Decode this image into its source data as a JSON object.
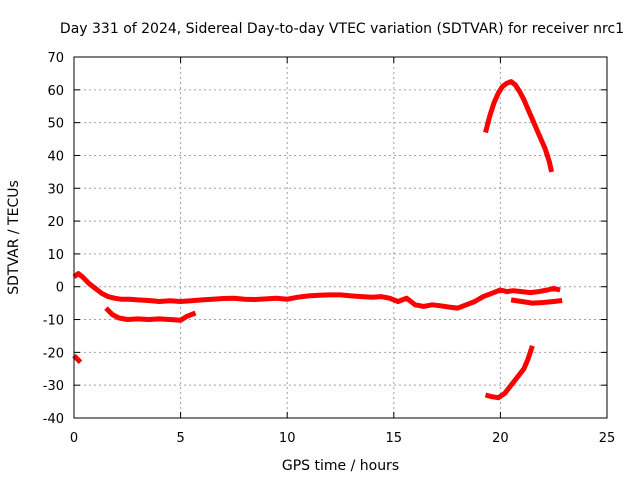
{
  "chart_data": {
    "type": "line",
    "title": "Day 331 of 2024, Sidereal Day-to-day VTEC variation (SDTVAR) for receiver nrc1",
    "xlabel": "GPS time / hours",
    "ylabel": "SDTVAR / TECUs",
    "xlim": [
      0,
      25
    ],
    "ylim": [
      -40,
      70
    ],
    "xticks": [
      0,
      5,
      10,
      15,
      20,
      25
    ],
    "yticks": [
      -40,
      -30,
      -20,
      -10,
      0,
      10,
      20,
      30,
      40,
      50,
      60,
      70
    ],
    "grid": true,
    "line_color": "#ff0000",
    "series": [
      {
        "name": "main",
        "x": [
          0.0,
          0.2,
          0.4,
          0.7,
          1.0,
          1.3,
          1.6,
          1.9,
          2.2,
          2.6,
          3.0,
          3.5,
          4.0,
          4.5,
          5.0,
          5.5,
          6.0,
          6.5,
          7.0,
          7.5,
          8.0,
          8.5,
          9.0,
          9.5,
          10.0,
          10.5,
          11.0,
          11.5,
          12.0,
          12.5,
          13.0,
          13.5,
          14.0,
          14.4,
          14.8,
          15.2,
          15.6,
          16.0,
          16.4,
          16.8,
          17.2,
          17.6,
          18.0,
          18.4,
          18.8,
          19.2,
          19.6,
          20.0,
          20.3,
          20.6,
          21.0,
          21.4,
          21.8,
          22.2,
          22.5,
          22.8
        ],
        "y": [
          3,
          4,
          3,
          1,
          -0.5,
          -2,
          -3,
          -3.5,
          -3.8,
          -3.8,
          -4,
          -4.2,
          -4.5,
          -4.3,
          -4.5,
          -4.3,
          -4,
          -3.8,
          -3.6,
          -3.5,
          -3.8,
          -3.9,
          -3.7,
          -3.5,
          -3.8,
          -3.2,
          -2.8,
          -2.6,
          -2.5,
          -2.5,
          -2.8,
          -3,
          -3.2,
          -3,
          -3.5,
          -4.5,
          -3.5,
          -5.5,
          -6,
          -5.5,
          -5.8,
          -6.2,
          -6.5,
          -5.5,
          -4.5,
          -3,
          -2,
          -1,
          -1.5,
          -1.2,
          -1.5,
          -1.8,
          -1.5,
          -1,
          -0.5,
          -1
        ]
      },
      {
        "name": "lower-left",
        "x": [
          1.5,
          1.8,
          2.1,
          2.5,
          3.0,
          3.5,
          4.0,
          4.5,
          5.0,
          5.3,
          5.7
        ],
        "y": [
          -6.5,
          -8.5,
          -9.5,
          -10,
          -9.8,
          -10,
          -9.8,
          -10,
          -10.2,
          -9,
          -8
        ]
      },
      {
        "name": "lower-branch",
        "x": [
          20.5,
          21.0,
          21.5,
          22.0,
          22.5,
          22.9
        ],
        "y": [
          -4,
          -4.5,
          -5,
          -4.8,
          -4.5,
          -4.2
        ]
      },
      {
        "name": "rising-peak",
        "x": [
          19.3,
          19.5,
          19.7,
          19.9,
          20.1,
          20.3,
          20.5,
          20.7,
          20.9,
          21.1,
          21.3,
          21.5,
          21.7,
          21.9,
          22.1,
          22.3,
          22.4
        ],
        "y": [
          47,
          52,
          56,
          59,
          61,
          62,
          62.5,
          61.5,
          59.5,
          57,
          54,
          51,
          48,
          45,
          42,
          38,
          35
        ]
      },
      {
        "name": "rising-low",
        "x": [
          19.3,
          19.6,
          19.9,
          20.2,
          20.5,
          20.8,
          21.1,
          21.3,
          21.5
        ],
        "y": [
          -33,
          -33.5,
          -33.8,
          -32.5,
          -30,
          -27.5,
          -25,
          -22,
          -18
        ]
      },
      {
        "name": "early-drop",
        "x": [
          0.0,
          0.15,
          0.3
        ],
        "y": [
          -21,
          -22,
          -23
        ]
      }
    ]
  }
}
